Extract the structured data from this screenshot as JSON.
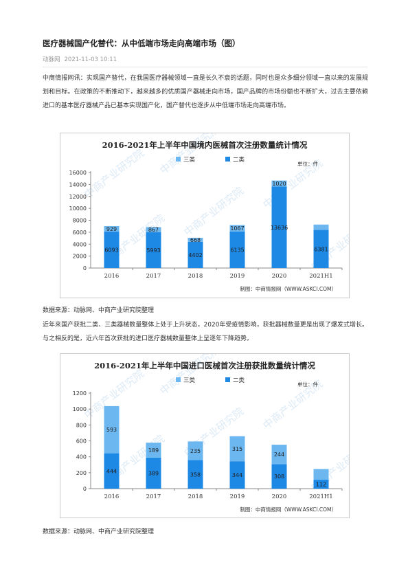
{
  "article": {
    "title": "医疗器械国产化替代：从中低端市场走向高端市场（图）",
    "source_name": "动脉网",
    "datetime": "2021-11-03 10:11",
    "para1": "中商情报网讯：实现国产替代，在我国医疗器械领域一直是长久不衰的话题，同时也是众多细分领域一直以来的发展规划和目标。在政策的不断推动下，越来越多的优质国产器械走向市场，国产品牌的市场份额也不断扩大，过去主要依赖进口的基本医疗器械产品已基本实现国产化，国产替代也逐步从中低端市场走向高端市场。",
    "source1": "数据来源：动脉网、中商产业研究院整理",
    "para2": "近年来国产获批二类、三类器械数量整体上处于上升状态，2020年受疫情影响，获批器械数量更是出现了爆发式增长。与之相反的是，近六年首次获批的进口医疗器械数量整体上呈逐年下降趋势。",
    "source2": "数据来源：动脉网、中商产业研究院整理"
  },
  "colors": {
    "class2": "#1e88e5",
    "class3": "#6cb7f0",
    "axis": "#888888",
    "text": "#333333",
    "watermark": "#bfd9ef"
  },
  "chart_data": [
    {
      "type": "bar",
      "stacked": true,
      "title": "2016-2021年上半年中国境内医械首次注册数量统计情况",
      "unit": "单位：件",
      "credit": "制图：中商情报网（WWW.ASKCI.COM）",
      "watermark": "中商产业研究院",
      "categories": [
        "2016",
        "2017",
        "2018",
        "2019",
        "2020",
        "2021H1"
      ],
      "yticks": [
        0,
        2000,
        4000,
        6000,
        8000,
        10000,
        12000,
        14000,
        16000
      ],
      "ylim": [
        0,
        16000
      ],
      "legend_position": "top",
      "series": [
        {
          "name": "二类",
          "color_key": "class2",
          "values": [
            6093,
            5993,
            4402,
            6135,
            13636,
            6381
          ],
          "labels": [
            "6093",
            "5993",
            "4402",
            "6135",
            "13636",
            "6381"
          ]
        },
        {
          "name": "三类",
          "color_key": "class3",
          "values": [
            929,
            867,
            668,
            1067,
            1020,
            900
          ],
          "labels": [
            "929",
            "867",
            "668",
            "1067",
            "1020",
            ""
          ]
        }
      ]
    },
    {
      "type": "bar",
      "stacked": true,
      "title": "2016-2021年上半年中国进口医械首次注册获批数量统计情况",
      "unit": "单位：件",
      "credit": "制图：中商情报网（WWW.ASKCI.COM）",
      "watermark": "中商产业研究院",
      "categories": [
        "2016",
        "2017",
        "2018",
        "2019",
        "2020",
        "2021H1"
      ],
      "yticks": [
        0,
        200,
        400,
        600,
        800,
        1000,
        1200
      ],
      "ylim": [
        0,
        1200
      ],
      "legend_position": "top",
      "series": [
        {
          "name": "二类",
          "color_key": "class2",
          "values": [
            444,
            389,
            358,
            344,
            308,
            112
          ],
          "labels": [
            "444",
            "389",
            "358",
            "344",
            "308",
            "112"
          ]
        },
        {
          "name": "三类",
          "color_key": "class3",
          "values": [
            593,
            189,
            235,
            315,
            244,
            135
          ],
          "labels": [
            "593",
            "189",
            "235",
            "315",
            "244",
            ""
          ]
        }
      ]
    }
  ]
}
